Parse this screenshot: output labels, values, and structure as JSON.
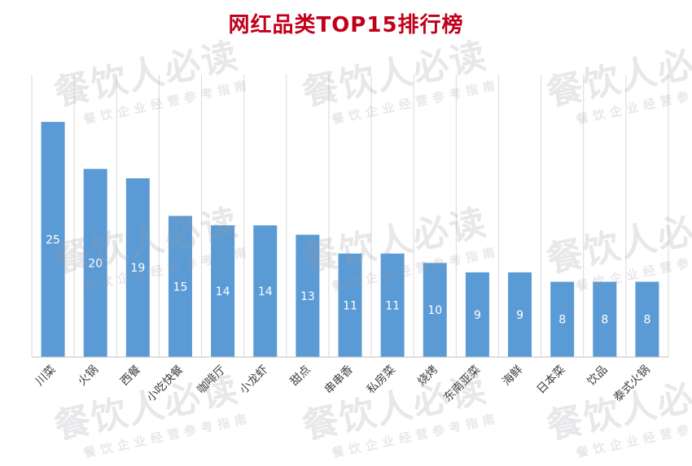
{
  "chart_data": {
    "type": "bar",
    "title": "网红品类TOP15排行榜",
    "categories": [
      "川菜",
      "火锅",
      "西餐",
      "小吃快餐",
      "咖啡厅",
      "小龙虾",
      "甜点",
      "串串香",
      "私房菜",
      "烧烤",
      "东南亚菜",
      "海鲜",
      "日本菜",
      "饮品",
      "泰式火锅"
    ],
    "values": [
      25,
      20,
      19,
      15,
      14,
      14,
      13,
      11,
      11,
      10,
      9,
      9,
      8,
      8,
      8
    ],
    "ylim": [
      0,
      30
    ],
    "grid": "vertical",
    "bar_color": "#5b9bd5",
    "label_color": "#ffffff"
  },
  "watermark": {
    "main": "餐饮人必读",
    "sub": "餐饮企业经营参考指南"
  }
}
